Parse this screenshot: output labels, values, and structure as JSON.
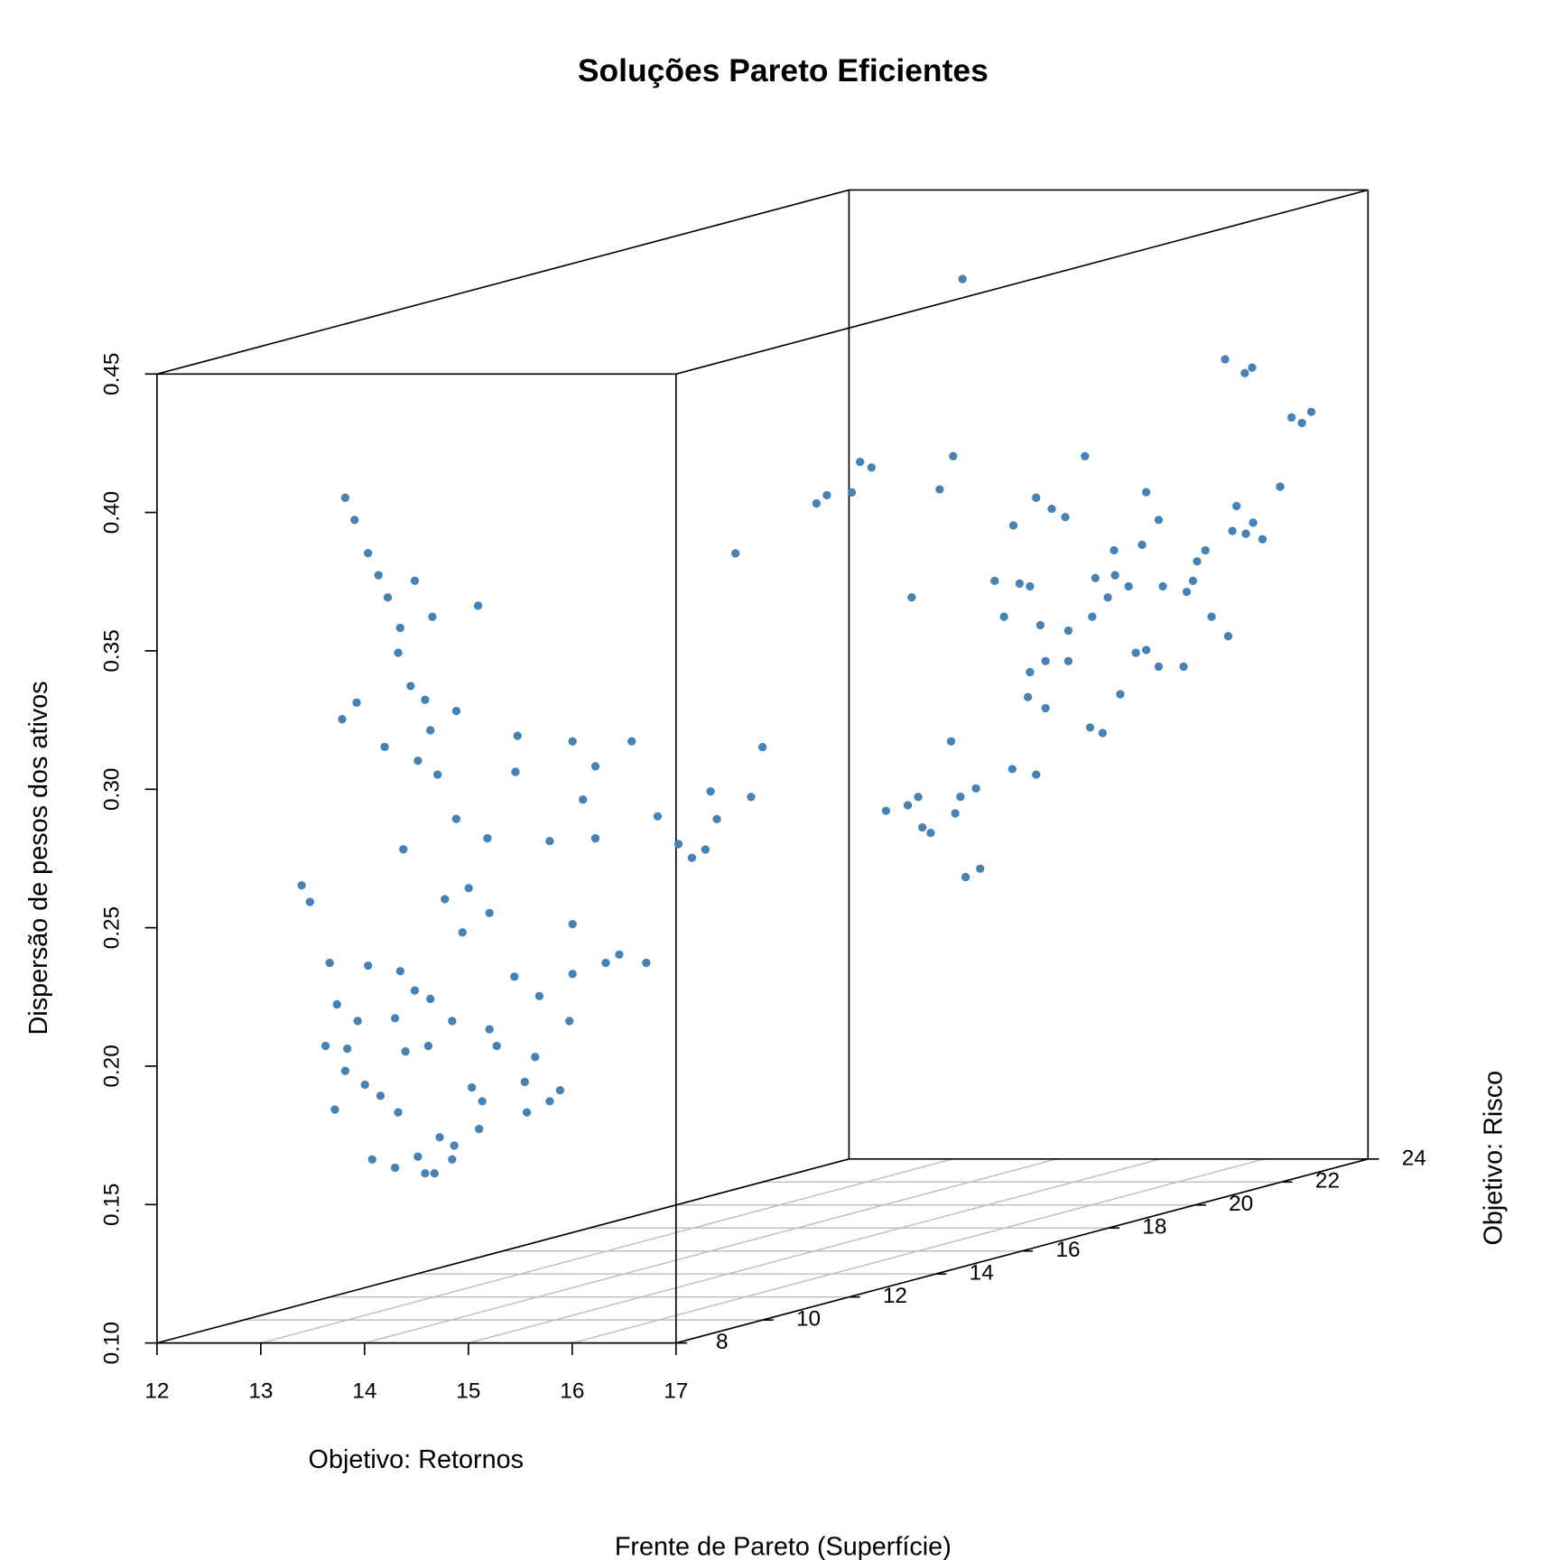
{
  "chart_data": {
    "type": "scatter3d",
    "title": "Soluções Pareto Eficientes",
    "subtitle": "Frente de Pareto (Superfície)",
    "xlabel": "Objetivo: Retornos",
    "ylabel": "Objetivo: Risco",
    "zlabel": "Dispersão de pesos dos ativos",
    "color": "#4682b4",
    "grid": true,
    "xlim": [
      12,
      17
    ],
    "ylim": [
      8,
      24
    ],
    "zlim": [
      0.1,
      0.45
    ],
    "xticks": [
      12,
      13,
      14,
      15,
      16,
      17
    ],
    "yticks": [
      8,
      10,
      12,
      14,
      16,
      18,
      20,
      22,
      24
    ],
    "zticks": [
      {
        "value": 0.1,
        "label": "0.10"
      },
      0.15,
      {
        "value": 0.2,
        "label": "0.20"
      },
      0.25,
      {
        "value": 0.3,
        "label": "0.30"
      },
      0.35,
      {
        "value": 0.4,
        "label": "0.40"
      },
      0.45
    ],
    "x": [
      12.98,
      13.07,
      13.2,
      13.3,
      13.65,
      13.39,
      13.82,
      14.26,
      13.51,
      13.49,
      13.61,
      13.09,
      12.95,
      13.75,
      13.8,
      13.36,
      13.68,
      13.87,
      14.05,
      14.64,
      14.62,
      15.17,
      15.39,
      15.74,
      15.27,
      15.39,
      14.05,
      14.35,
      13.54,
      14.95,
      12.56,
      12.64,
      13.94,
      14.17,
      14.37,
      14.11,
      15.17,
      12.83,
      13.2,
      13.51,
      13.65,
      12.9,
      13.1,
      13.46,
      13.8,
      14.01,
      14.37,
      14.61,
      14.85,
      15.17,
      15.14,
      15.49,
      15.62,
      15.88,
      12.79,
      13.0,
      12.98,
      13.17,
      13.56,
      13.78,
      14.44,
      14.81,
      14.71,
      15.05,
      12.88,
      13.32,
      13.49,
      14.2,
      14.3,
      14.73,
      14.95,
      13.89,
      14.03,
      14.27,
      13.24,
      13.46,
      13.68,
      13.75,
      13.84,
      14.01,
      13.49,
      13.69,
      13.82,
      13.95,
      14.0,
      14.06,
      14.39,
      14.5,
      14.24,
      15.02,
      15.12,
      15.36,
      15.44,
      15.55,
      15.69,
      15.9,
      16.0,
      16.04,
      16.12,
      13.51,
      13.42,
      13.29,
      13.02,
      13.4,
      13.44,
      13.49,
      13.64,
      13.54,
      13.68,
      13.99,
      14.22,
      14.69,
      14.22,
      14.37,
      14.5,
      14.0,
      13.82,
      14.06,
      14.16,
      13.91,
      14.26,
      14.53,
      14.79,
      14.76,
      14.31,
      14.53,
      14.16,
      14.14,
      14.31,
      14.74,
      14.86,
      15.03,
      14.97,
      14.98,
      14.91,
      15.11,
      15.24,
      15.28,
      15.4,
      15.18,
      15.28,
      15.4,
      15.64,
      15.44,
      15.67,
      15.73,
      15.77,
      15.85,
      15.91,
      16.07,
      16.15,
      16.11,
      16.24,
      16.4,
      16.31,
      16.57,
      16.04,
      16.23,
      16.3,
      16.68,
      16.87,
      16.78
    ],
    "y": [
      10,
      10,
      10,
      10,
      10,
      10,
      10,
      10,
      10,
      10,
      10,
      10,
      10,
      10,
      10,
      10,
      10,
      10,
      10,
      10,
      10,
      10,
      10,
      10,
      10,
      10,
      10,
      10,
      10,
      10,
      10,
      10,
      10,
      10,
      10,
      10,
      10,
      10,
      10,
      10,
      10,
      10,
      10,
      10,
      10,
      10,
      10,
      10,
      10,
      10,
      10,
      10,
      10,
      10,
      10,
      10,
      10,
      10,
      10,
      10,
      10,
      10,
      10,
      10,
      10,
      10,
      10,
      10,
      10,
      10,
      10,
      10,
      10,
      10,
      10,
      10,
      10,
      10,
      10,
      10,
      16,
      16,
      16,
      16,
      16,
      16,
      16,
      16,
      16,
      16,
      16,
      16,
      16,
      16,
      16,
      16,
      16,
      16,
      16,
      23,
      23,
      23,
      23,
      23,
      23,
      23,
      23,
      23,
      23,
      23,
      23,
      23,
      23,
      23,
      23,
      23,
      23,
      23,
      23,
      23,
      23,
      23,
      23,
      23,
      23,
      23,
      23,
      23,
      23,
      23,
      23,
      23,
      23,
      23,
      23,
      23,
      23,
      23,
      23,
      23,
      23,
      23,
      23,
      23,
      23,
      23,
      23,
      23,
      23,
      23,
      23,
      23,
      23,
      23,
      23,
      23,
      23,
      23,
      23,
      23,
      23,
      23
    ],
    "z": [
      0.397,
      0.389,
      0.377,
      0.369,
      0.367,
      0.361,
      0.354,
      0.358,
      0.35,
      0.341,
      0.329,
      0.323,
      0.317,
      0.324,
      0.313,
      0.307,
      0.302,
      0.297,
      0.32,
      0.311,
      0.298,
      0.309,
      0.3,
      0.309,
      0.288,
      0.274,
      0.281,
      0.274,
      0.27,
      0.273,
      0.257,
      0.251,
      0.252,
      0.256,
      0.247,
      0.24,
      0.243,
      0.229,
      0.228,
      0.226,
      0.219,
      0.214,
      0.208,
      0.209,
      0.216,
      0.208,
      0.205,
      0.224,
      0.217,
      0.225,
      0.208,
      0.229,
      0.232,
      0.229,
      0.199,
      0.198,
      0.19,
      0.185,
      0.197,
      0.199,
      0.199,
      0.195,
      0.186,
      0.183,
      0.176,
      0.181,
      0.175,
      0.184,
      0.179,
      0.175,
      0.179,
      0.166,
      0.163,
      0.169,
      0.158,
      0.155,
      0.159,
      0.153,
      0.153,
      0.158,
      0.257,
      0.247,
      0.242,
      0.245,
      0.266,
      0.256,
      0.264,
      0.282,
      0.352,
      0.37,
      0.373,
      0.374,
      0.385,
      0.383,
      0.259,
      0.261,
      0.264,
      0.253,
      0.251,
      0.422,
      0.358,
      0.346,
      0.307,
      0.255,
      0.229,
      0.235,
      0.238,
      0.206,
      0.209,
      0.245,
      0.243,
      0.358,
      0.343,
      0.339,
      0.336,
      0.333,
      0.313,
      0.312,
      0.311,
      0.3,
      0.297,
      0.295,
      0.314,
      0.3,
      0.284,
      0.284,
      0.28,
      0.271,
      0.267,
      0.26,
      0.258,
      0.272,
      0.324,
      0.315,
      0.307,
      0.311,
      0.326,
      0.345,
      0.335,
      0.287,
      0.288,
      0.282,
      0.282,
      0.311,
      0.309,
      0.313,
      0.32,
      0.324,
      0.3,
      0.293,
      0.34,
      0.331,
      0.33,
      0.328,
      0.334,
      0.347,
      0.393,
      0.388,
      0.39,
      0.372,
      0.374,
      0.37
    ]
  }
}
